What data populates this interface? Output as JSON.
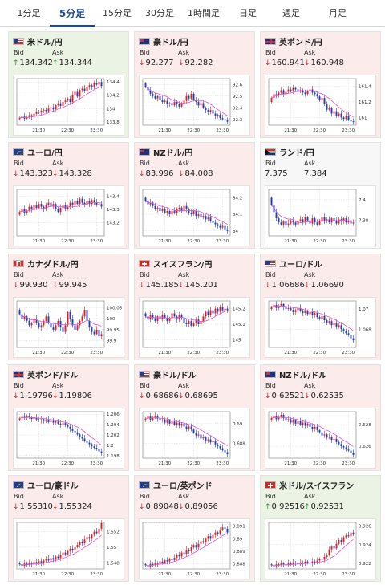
{
  "tabs": [
    {
      "label": "1分足",
      "active": false
    },
    {
      "label": "5分足",
      "active": true
    },
    {
      "label": "15分足",
      "active": false
    },
    {
      "label": "30分足",
      "active": false
    },
    {
      "label": "1時間足",
      "active": false
    },
    {
      "label": "日足",
      "active": false
    },
    {
      "label": "週足",
      "active": false
    },
    {
      "label": "月足",
      "active": false
    }
  ],
  "labels": {
    "bid": "Bid",
    "ask": "Ask"
  },
  "colors": {
    "up": "#2a9a3a",
    "down": "#d02a2a",
    "bull_candle": "#e02020",
    "bear_candle": "#1f3fbf",
    "moving_average": "#e050e0",
    "active_tab": "#1a4a9a"
  },
  "cards": [
    {
      "pair": "米ドル/円",
      "flag": "us-flag-icon",
      "direction": "up",
      "bid": "134.342",
      "ask": "134.344",
      "chart_data": {
        "type": "candlestick",
        "x_ticks": [
          "21:30",
          "22:30",
          "23:30"
        ],
        "y_ticks": [
          "134.4",
          "134.2",
          "134",
          "133.8"
        ],
        "ylim": [
          133.75,
          134.45
        ],
        "close": [
          133.86,
          133.88,
          133.85,
          133.87,
          133.9,
          133.88,
          133.92,
          133.95,
          133.94,
          133.97,
          133.98,
          133.96,
          134.0,
          134.02,
          133.99,
          134.05,
          134.08,
          134.04,
          134.1,
          134.12,
          134.15,
          134.1,
          134.2,
          134.25,
          134.18,
          134.28,
          134.3,
          134.26,
          134.33,
          134.35,
          134.32,
          134.38,
          134.36,
          134.4,
          134.34
        ]
      }
    },
    {
      "pair": "豪ドル/円",
      "flag": "au-flag-icon",
      "direction": "down",
      "bid": "92.277",
      "ask": "92.282",
      "chart_data": {
        "type": "candlestick",
        "x_ticks": [
          "21:30",
          "22:30",
          "23:30"
        ],
        "y_ticks": [
          "92.6",
          "92.5",
          "92.4",
          "92.3"
        ],
        "ylim": [
          92.25,
          92.65
        ],
        "close": [
          92.58,
          92.55,
          92.52,
          92.5,
          92.48,
          92.5,
          92.47,
          92.45,
          92.46,
          92.43,
          92.44,
          92.42,
          92.45,
          92.43,
          92.41,
          92.44,
          92.46,
          92.5,
          92.48,
          92.52,
          92.47,
          92.45,
          92.42,
          92.44,
          92.4,
          92.38,
          92.36,
          92.38,
          92.35,
          92.33,
          92.34,
          92.31,
          92.3,
          92.29,
          92.28
        ]
      }
    },
    {
      "pair": "英ポンド/円",
      "flag": "gb-flag-icon",
      "direction": "down",
      "bid": "160.941",
      "ask": "160.948",
      "chart_data": {
        "type": "candlestick",
        "x_ticks": [
          "21:30",
          "22:30",
          "23:30"
        ],
        "y_ticks": [
          "161.4",
          "161.2",
          "161"
        ],
        "ylim": [
          160.9,
          161.5
        ],
        "close": [
          161.25,
          161.3,
          161.28,
          161.32,
          161.35,
          161.3,
          161.33,
          161.36,
          161.34,
          161.38,
          161.36,
          161.33,
          161.35,
          161.32,
          161.3,
          161.34,
          161.36,
          161.32,
          161.3,
          161.27,
          161.22,
          161.25,
          161.18,
          161.1,
          161.12,
          161.05,
          161.08,
          161.02,
          161.05,
          161.0,
          160.98,
          161.02,
          160.97,
          160.95,
          160.94
        ]
      }
    },
    {
      "pair": "ユーロ/円",
      "flag": "eu-flag-icon",
      "direction": "down",
      "bid": "143.323",
      "ask": "143.328",
      "chart_data": {
        "type": "candlestick",
        "x_ticks": [
          "21:30",
          "22:30",
          "23:30"
        ],
        "y_ticks": [
          "143.4",
          "143.3",
          "143.2"
        ],
        "ylim": [
          143.1,
          143.45
        ],
        "close": [
          143.28,
          143.3,
          143.27,
          143.29,
          143.32,
          143.3,
          143.33,
          143.31,
          143.34,
          143.32,
          143.3,
          143.33,
          143.35,
          143.32,
          143.34,
          143.3,
          143.28,
          143.31,
          143.33,
          143.3,
          143.32,
          143.35,
          143.33,
          143.36,
          143.34,
          143.38,
          143.35,
          143.33,
          143.36,
          143.34,
          143.37,
          143.35,
          143.33,
          143.34,
          143.32
        ]
      }
    },
    {
      "pair": "NZドル/円",
      "flag": "nz-flag-icon",
      "direction": "down",
      "bid": "83.996",
      "ask": "84.008",
      "chart_data": {
        "type": "candlestick",
        "x_ticks": [
          "21:30",
          "22:30",
          "23:30"
        ],
        "y_ticks": [
          "84.2",
          "84.1",
          "84"
        ],
        "ylim": [
          83.97,
          84.25
        ],
        "close": [
          84.18,
          84.16,
          84.17,
          84.15,
          84.13,
          84.14,
          84.12,
          84.13,
          84.11,
          84.12,
          84.1,
          84.12,
          84.11,
          84.13,
          84.14,
          84.12,
          84.15,
          84.13,
          84.11,
          84.1,
          84.12,
          84.09,
          84.1,
          84.08,
          84.09,
          84.07,
          84.08,
          84.06,
          84.05,
          84.04,
          84.03,
          84.02,
          84.03,
          84.01,
          84.0
        ]
      }
    },
    {
      "pair": "ランド/円",
      "flag": "za-flag-icon",
      "direction": "flat",
      "bid": "7.375",
      "ask": "7.384",
      "chart_data": {
        "type": "candlestick",
        "x_ticks": [
          "21:30",
          "22:30",
          "23:30"
        ],
        "y_ticks": [
          "7.4",
          "7.38"
        ],
        "ylim": [
          7.365,
          7.41
        ],
        "close": [
          7.395,
          7.388,
          7.382,
          7.378,
          7.376,
          7.379,
          7.375,
          7.377,
          7.38,
          7.378,
          7.376,
          7.379,
          7.381,
          7.378,
          7.383,
          7.38,
          7.377,
          7.382,
          7.378,
          7.376,
          7.38,
          7.383,
          7.379,
          7.381,
          7.378,
          7.382,
          7.38,
          7.377,
          7.381,
          7.379,
          7.382,
          7.378,
          7.38,
          7.377,
          7.378
        ]
      }
    },
    {
      "pair": "カナダドル/円",
      "flag": "ca-flag-icon",
      "direction": "down",
      "bid": "99.930",
      "ask": "99.945",
      "chart_data": {
        "type": "candlestick",
        "x_ticks": [
          "21:30",
          "22:30",
          "23:30"
        ],
        "y_ticks": [
          "100.05",
          "100",
          "99.95",
          "99.9"
        ],
        "ylim": [
          99.87,
          100.08
        ],
        "close": [
          100.02,
          100.0,
          100.01,
          99.99,
          99.97,
          99.98,
          100.0,
          99.98,
          99.96,
          99.97,
          99.99,
          100.01,
          99.98,
          99.96,
          99.95,
          99.97,
          99.99,
          99.96,
          99.94,
          99.97,
          100.03,
          100.0,
          99.97,
          99.95,
          99.97,
          99.99,
          100.01,
          100.04,
          99.99,
          99.96,
          99.94,
          99.93,
          99.95,
          99.92,
          99.93
        ]
      }
    },
    {
      "pair": "スイスフラン/円",
      "flag": "ch-flag-icon",
      "direction": "down",
      "bid": "145.185",
      "ask": "145.201",
      "chart_data": {
        "type": "candlestick",
        "x_ticks": [
          "21:30",
          "22:30",
          "23:30"
        ],
        "y_ticks": [
          "145.2",
          "145.1",
          "145"
        ],
        "ylim": [
          144.95,
          145.25
        ],
        "close": [
          145.15,
          145.13,
          145.16,
          145.14,
          145.12,
          145.15,
          145.13,
          145.16,
          145.14,
          145.12,
          145.14,
          145.17,
          145.15,
          145.13,
          145.16,
          145.14,
          145.11,
          145.1,
          145.12,
          145.09,
          145.11,
          145.13,
          145.1,
          145.12,
          145.15,
          145.18,
          145.16,
          145.19,
          145.17,
          145.2,
          145.18,
          145.21,
          145.19,
          145.2,
          145.19
        ]
      }
    },
    {
      "pair": "ユーロ/ドル",
      "flag": "us-flag-icon",
      "direction": "down",
      "bid": "1.06686",
      "ask": "1.06690",
      "chart_data": {
        "type": "candlestick",
        "x_ticks": [
          "21:30",
          "22:30",
          "23:30"
        ],
        "y_ticks": [
          "1.07",
          "1.068"
        ],
        "ylim": [
          1.0662,
          1.0708
        ],
        "close": [
          1.0702,
          1.0704,
          1.0701,
          1.0703,
          1.0705,
          1.0702,
          1.07,
          1.0701,
          1.0699,
          1.0697,
          1.0699,
          1.0701,
          1.0698,
          1.0696,
          1.0698,
          1.0695,
          1.0697,
          1.0694,
          1.0696,
          1.0692,
          1.069,
          1.0693,
          1.0689,
          1.0686,
          1.0688,
          1.0684,
          1.0686,
          1.0682,
          1.0684,
          1.068,
          1.0678,
          1.0676,
          1.0674,
          1.0671,
          1.0669
        ]
      }
    },
    {
      "pair": "英ポンド/ドル",
      "flag": "gb-flag-icon",
      "direction": "down",
      "bid": "1.19796",
      "ask": "1.19806",
      "chart_data": {
        "type": "candlestick",
        "x_ticks": [
          "21:30",
          "22:30",
          "23:30"
        ],
        "y_ticks": [
          "1.206",
          "1.204",
          "1.202",
          "1.2",
          "1.198"
        ],
        "ylim": [
          1.1975,
          1.2065
        ],
        "close": [
          1.2052,
          1.2055,
          1.2053,
          1.2056,
          1.2054,
          1.2051,
          1.2053,
          1.205,
          1.2048,
          1.205,
          1.2047,
          1.2049,
          1.2045,
          1.2047,
          1.2044,
          1.2046,
          1.2042,
          1.204,
          1.2043,
          1.2039,
          1.2036,
          1.2032,
          1.2028,
          1.2025,
          1.2021,
          1.2017,
          1.2013,
          1.2009,
          1.2005,
          1.2002,
          1.1998,
          1.1995,
          1.1992,
          1.1988,
          1.1985
        ]
      }
    },
    {
      "pair": "豪ドル/ドル",
      "flag": "us-flag-icon",
      "direction": "down",
      "bid": "0.68686",
      "ask": "0.68695",
      "chart_data": {
        "type": "candlestick",
        "x_ticks": [
          "21:30",
          "22:30",
          "23:30"
        ],
        "y_ticks": [
          "0.69",
          "0.688"
        ],
        "ylim": [
          0.6865,
          0.6912
        ],
        "close": [
          0.6905,
          0.6907,
          0.6904,
          0.6906,
          0.6908,
          0.6905,
          0.6903,
          0.6904,
          0.6901,
          0.6903,
          0.69,
          0.6902,
          0.6899,
          0.6901,
          0.6898,
          0.69,
          0.6897,
          0.6895,
          0.6897,
          0.6894,
          0.6891,
          0.6888,
          0.6889,
          0.6885,
          0.6886,
          0.6883,
          0.6884,
          0.6881,
          0.6882,
          0.6879,
          0.6877,
          0.6875,
          0.6873,
          0.6871,
          0.6869
        ]
      }
    },
    {
      "pair": "NZドル/ドル",
      "flag": "nz-flag-icon",
      "direction": "down",
      "bid": "0.62521",
      "ask": "0.62535",
      "chart_data": {
        "type": "candlestick",
        "x_ticks": [
          "21:30",
          "22:30",
          "23:30"
        ],
        "y_ticks": [
          "0.628",
          "0.626"
        ],
        "ylim": [
          0.6249,
          0.6292
        ],
        "close": [
          0.6286,
          0.6288,
          0.6285,
          0.6287,
          0.6289,
          0.6286,
          0.6284,
          0.6285,
          0.6282,
          0.6284,
          0.6281,
          0.6283,
          0.628,
          0.6282,
          0.6279,
          0.6281,
          0.6278,
          0.6276,
          0.6278,
          0.6275,
          0.6273,
          0.627,
          0.6271,
          0.6268,
          0.6269,
          0.6266,
          0.6267,
          0.6264,
          0.6262,
          0.626,
          0.6259,
          0.6257,
          0.6256,
          0.6254,
          0.6252
        ]
      }
    },
    {
      "pair": "ユーロ/豪ドル",
      "flag": "eu-flag-icon",
      "direction": "down",
      "bid": "1.55310",
      "ask": "1.55324",
      "chart_data": {
        "type": "candlestick",
        "x_ticks": [
          "21:30",
          "22:30",
          "23:30"
        ],
        "y_ticks": [
          "1.552",
          "1.55",
          "1.548"
        ],
        "ylim": [
          1.5472,
          1.5532
        ],
        "close": [
          1.5478,
          1.5476,
          1.5479,
          1.5477,
          1.548,
          1.5478,
          1.5481,
          1.5479,
          1.5482,
          1.548,
          1.5483,
          1.5485,
          1.5483,
          1.5486,
          1.5484,
          1.5488,
          1.5486,
          1.549,
          1.5493,
          1.5491,
          1.5495,
          1.5498,
          1.5496,
          1.55,
          1.5503,
          1.5507,
          1.5505,
          1.551,
          1.5513,
          1.5511,
          1.5516,
          1.552,
          1.5518,
          1.5524,
          1.5531
        ]
      }
    },
    {
      "pair": "ユーロ/英ポンド",
      "flag": "eu-flag-icon",
      "direction": "down",
      "bid": "0.89048",
      "ask": "0.89056",
      "chart_data": {
        "type": "candlestick",
        "x_ticks": [
          "21:30",
          "22:30",
          "23:30"
        ],
        "y_ticks": [
          "0.891",
          "0.89",
          "0.889",
          "0.888"
        ],
        "ylim": [
          0.8876,
          0.8913
        ],
        "close": [
          0.8879,
          0.8878,
          0.888,
          0.8879,
          0.8881,
          0.888,
          0.8882,
          0.8881,
          0.8883,
          0.8882,
          0.8884,
          0.8883,
          0.8885,
          0.8887,
          0.8886,
          0.8889,
          0.8888,
          0.8891,
          0.889,
          0.8893,
          0.8895,
          0.8893,
          0.8896,
          0.8898,
          0.8897,
          0.89,
          0.8902,
          0.89,
          0.8903,
          0.8905,
          0.8904,
          0.8907,
          0.8909,
          0.8908,
          0.8905
        ]
      }
    },
    {
      "pair": "米ドル/スイスフラン",
      "flag": "ch-flag-icon",
      "direction": "up",
      "bid": "0.92516",
      "ask": "0.92531",
      "chart_data": {
        "type": "candlestick",
        "x_ticks": [
          "21:30",
          "22:30",
          "23:30"
        ],
        "y_ticks": [
          "0.926",
          "0.924",
          "0.922"
        ],
        "ylim": [
          0.9214,
          0.9264
        ],
        "close": [
          0.9218,
          0.9217,
          0.9219,
          0.9218,
          0.922,
          0.9219,
          0.9218,
          0.922,
          0.9219,
          0.9221,
          0.922,
          0.9219,
          0.9221,
          0.922,
          0.9222,
          0.9221,
          0.922,
          0.9222,
          0.9221,
          0.9223,
          0.9225,
          0.9224,
          0.9227,
          0.9229,
          0.9235,
          0.9238,
          0.9236,
          0.9241,
          0.9245,
          0.9243,
          0.9248,
          0.925,
          0.9249,
          0.9253,
          0.9252
        ]
      }
    }
  ]
}
